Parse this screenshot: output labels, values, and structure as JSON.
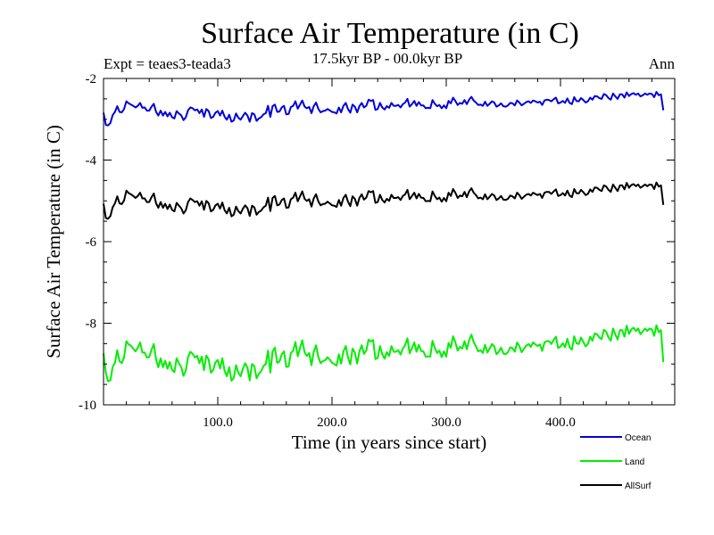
{
  "chart_data": {
    "type": "line",
    "title": "Surface Air Temperature (in C)",
    "subtitle": "17.5kyr BP - 00.0kyr BP",
    "left_label": "Expt = teaes3-teada3",
    "right_label": "Ann",
    "xlabel": "Time (in years since start)",
    "ylabel": "Surface Air Temperature (in C)",
    "xlim": [
      0,
      500
    ],
    "ylim": [
      -10,
      -2
    ],
    "x_ticks": [
      100,
      200,
      300,
      400
    ],
    "x_tick_labels": [
      "100.0",
      "200.0",
      "300.0",
      "400.0"
    ],
    "y_ticks": [
      -10,
      -8,
      -6,
      -4,
      -2
    ],
    "y_tick_labels": [
      "-10",
      "-8",
      "-6",
      "-4",
      "-2"
    ],
    "x_step": 2,
    "series": [
      {
        "name": "Ocean",
        "color": "#0000dd",
        "values": [
          -2.84,
          -3.14,
          -3.15,
          -3.09,
          -2.9,
          -2.82,
          -2.68,
          -2.82,
          -2.83,
          -2.75,
          -2.56,
          -2.61,
          -2.64,
          -2.67,
          -2.71,
          -2.67,
          -2.6,
          -2.72,
          -2.71,
          -2.79,
          -2.79,
          -2.69,
          -2.62,
          -2.82,
          -2.91,
          -2.79,
          -2.91,
          -2.82,
          -2.93,
          -2.84,
          -2.95,
          -2.98,
          -2.8,
          -2.86,
          -2.9,
          -3.02,
          -2.95,
          -2.78,
          -2.71,
          -2.73,
          -2.78,
          -2.76,
          -2.85,
          -2.76,
          -2.94,
          -2.75,
          -2.8,
          -2.97,
          -2.94,
          -2.84,
          -2.8,
          -2.91,
          -2.79,
          -2.94,
          -3.01,
          -2.89,
          -3.06,
          -3.03,
          -2.86,
          -2.96,
          -3.01,
          -2.92,
          -2.84,
          -2.91,
          -3.06,
          -2.85,
          -2.88,
          -3.04,
          -2.98,
          -2.95,
          -2.88,
          -2.85,
          -2.67,
          -2.94,
          -2.68,
          -2.64,
          -2.82,
          -2.81,
          -2.71,
          -2.67,
          -2.88,
          -2.87,
          -2.7,
          -2.67,
          -2.56,
          -2.74,
          -2.64,
          -2.54,
          -2.69,
          -2.73,
          -2.7,
          -2.85,
          -2.68,
          -2.59,
          -2.74,
          -2.83,
          -2.8,
          -2.79,
          -2.75,
          -2.78,
          -2.82,
          -2.83,
          -2.86,
          -2.71,
          -2.83,
          -2.67,
          -2.6,
          -2.75,
          -2.84,
          -2.64,
          -2.69,
          -2.83,
          -2.68,
          -2.6,
          -2.71,
          -2.67,
          -2.52,
          -2.55,
          -2.53,
          -2.77,
          -2.75,
          -2.6,
          -2.71,
          -2.76,
          -2.68,
          -2.72,
          -2.6,
          -2.67,
          -2.67,
          -2.65,
          -2.71,
          -2.63,
          -2.59,
          -2.5,
          -2.69,
          -2.63,
          -2.55,
          -2.67,
          -2.58,
          -2.66,
          -2.66,
          -2.73,
          -2.72,
          -2.73,
          -2.53,
          -2.62,
          -2.68,
          -2.65,
          -2.73,
          -2.66,
          -2.73,
          -2.55,
          -2.61,
          -2.47,
          -2.55,
          -2.65,
          -2.6,
          -2.62,
          -2.53,
          -2.63,
          -2.52,
          -2.45,
          -2.54,
          -2.59,
          -2.65,
          -2.64,
          -2.67,
          -2.57,
          -2.67,
          -2.62,
          -2.56,
          -2.59,
          -2.69,
          -2.66,
          -2.61,
          -2.68,
          -2.69,
          -2.66,
          -2.6,
          -2.61,
          -2.66,
          -2.54,
          -2.59,
          -2.66,
          -2.62,
          -2.58,
          -2.56,
          -2.6,
          -2.54,
          -2.56,
          -2.59,
          -2.57,
          -2.65,
          -2.54,
          -2.52,
          -2.53,
          -2.56,
          -2.51,
          -2.47,
          -2.61,
          -2.59,
          -2.55,
          -2.6,
          -2.49,
          -2.6,
          -2.63,
          -2.46,
          -2.55,
          -2.56,
          -2.48,
          -2.53,
          -2.59,
          -2.56,
          -2.47,
          -2.52,
          -2.43,
          -2.44,
          -2.48,
          -2.5,
          -2.38,
          -2.41,
          -2.48,
          -2.52,
          -2.37,
          -2.44,
          -2.5,
          -2.39,
          -2.39,
          -2.47,
          -2.34,
          -2.43,
          -2.38,
          -2.36,
          -2.4,
          -2.37,
          -2.44,
          -2.41,
          -2.37,
          -2.4,
          -2.37,
          -2.38,
          -2.46,
          -2.33,
          -2.41,
          -2.39,
          -2.78
        ]
      },
      {
        "name": "Land",
        "color": "#00ee00",
        "values": [
          -8.74,
          -9.21,
          -9.42,
          -9.4,
          -9.07,
          -8.97,
          -8.66,
          -8.93,
          -8.98,
          -8.84,
          -8.44,
          -8.52,
          -8.55,
          -8.62,
          -8.69,
          -8.6,
          -8.47,
          -8.72,
          -8.72,
          -8.84,
          -8.83,
          -8.65,
          -8.51,
          -8.89,
          -9.08,
          -8.86,
          -9.08,
          -8.92,
          -9.12,
          -8.95,
          -9.14,
          -9.2,
          -8.86,
          -8.98,
          -9.07,
          -9.29,
          -9.16,
          -8.83,
          -8.7,
          -8.75,
          -8.84,
          -8.8,
          -8.98,
          -8.82,
          -9.15,
          -8.79,
          -8.89,
          -9.21,
          -9.15,
          -8.96,
          -8.9,
          -9.11,
          -8.86,
          -9.17,
          -9.3,
          -9.08,
          -9.41,
          -9.34,
          -9.03,
          -9.21,
          -9.3,
          -9.11,
          -8.98,
          -9.09,
          -9.4,
          -9.0,
          -9.05,
          -9.35,
          -9.24,
          -9.18,
          -9.05,
          -9.0,
          -8.67,
          -9.21,
          -8.69,
          -8.6,
          -8.97,
          -8.94,
          -8.76,
          -8.69,
          -9.07,
          -9.06,
          -8.73,
          -8.67,
          -8.46,
          -8.81,
          -8.61,
          -8.42,
          -8.71,
          -8.8,
          -8.73,
          -9.03,
          -8.7,
          -8.54,
          -8.82,
          -8.98,
          -8.93,
          -8.91,
          -8.83,
          -8.89,
          -8.97,
          -9.0,
          -9.04,
          -8.76,
          -8.99,
          -8.69,
          -8.56,
          -8.84,
          -9.01,
          -8.62,
          -8.72,
          -8.99,
          -8.69,
          -8.54,
          -8.75,
          -8.67,
          -8.4,
          -8.45,
          -8.41,
          -8.88,
          -8.85,
          -8.56,
          -8.76,
          -8.87,
          -8.71,
          -8.8,
          -8.56,
          -8.7,
          -8.7,
          -8.66,
          -8.77,
          -8.62,
          -8.54,
          -8.37,
          -8.74,
          -8.61,
          -8.47,
          -8.7,
          -8.53,
          -8.68,
          -8.69,
          -8.82,
          -8.81,
          -8.82,
          -8.43,
          -8.61,
          -8.73,
          -8.67,
          -8.83,
          -8.69,
          -8.82,
          -8.48,
          -8.6,
          -8.32,
          -8.47,
          -8.67,
          -8.58,
          -8.62,
          -8.44,
          -8.64,
          -8.42,
          -8.28,
          -8.46,
          -8.57,
          -8.69,
          -8.66,
          -8.73,
          -8.53,
          -8.72,
          -8.62,
          -8.51,
          -8.57,
          -8.76,
          -8.7,
          -8.6,
          -8.74,
          -8.76,
          -8.71,
          -8.59,
          -8.61,
          -8.7,
          -8.47,
          -8.56,
          -8.71,
          -8.63,
          -8.55,
          -8.51,
          -8.58,
          -8.47,
          -8.52,
          -8.56,
          -8.52,
          -8.68,
          -8.47,
          -8.44,
          -8.44,
          -8.51,
          -8.41,
          -8.33,
          -8.61,
          -8.57,
          -8.49,
          -8.59,
          -8.38,
          -8.59,
          -8.65,
          -8.32,
          -8.49,
          -8.51,
          -8.35,
          -8.46,
          -8.57,
          -8.51,
          -8.33,
          -8.43,
          -8.25,
          -8.27,
          -8.35,
          -8.39,
          -8.16,
          -8.21,
          -8.35,
          -8.43,
          -8.13,
          -8.27,
          -8.4,
          -8.17,
          -8.17,
          -8.33,
          -8.06,
          -8.26,
          -8.15,
          -8.11,
          -8.19,
          -8.13,
          -8.27,
          -8.2,
          -8.13,
          -8.19,
          -8.13,
          -8.15,
          -8.31,
          -8.05,
          -8.22,
          -8.17,
          -8.95
        ]
      },
      {
        "name": "AllSurf",
        "color": "#000000",
        "values": [
          -5.07,
          -5.42,
          -5.44,
          -5.37,
          -5.16,
          -5.06,
          -4.89,
          -5.06,
          -5.08,
          -4.99,
          -4.75,
          -4.81,
          -4.84,
          -4.88,
          -4.93,
          -4.88,
          -4.8,
          -4.94,
          -4.94,
          -5.03,
          -5.03,
          -4.91,
          -4.82,
          -5.06,
          -5.17,
          -5.03,
          -5.17,
          -5.07,
          -5.2,
          -5.09,
          -5.22,
          -5.26,
          -5.05,
          -5.12,
          -5.18,
          -5.31,
          -5.23,
          -5.03,
          -4.94,
          -4.98,
          -5.03,
          -5.01,
          -5.12,
          -5.01,
          -5.22,
          -5.0,
          -5.06,
          -5.26,
          -5.22,
          -5.11,
          -5.07,
          -5.19,
          -5.04,
          -5.23,
          -5.31,
          -5.17,
          -5.38,
          -5.34,
          -5.14,
          -5.25,
          -5.31,
          -5.19,
          -5.11,
          -5.18,
          -5.37,
          -5.12,
          -5.16,
          -5.34,
          -5.27,
          -5.24,
          -5.16,
          -5.12,
          -4.92,
          -5.25,
          -4.93,
          -4.88,
          -5.11,
          -5.09,
          -4.98,
          -4.94,
          -5.17,
          -5.16,
          -4.96,
          -4.92,
          -4.8,
          -5.01,
          -4.89,
          -4.77,
          -4.95,
          -5.0,
          -4.96,
          -5.14,
          -4.94,
          -4.84,
          -5.01,
          -5.11,
          -5.08,
          -5.07,
          -5.02,
          -5.06,
          -5.11,
          -5.12,
          -5.15,
          -4.98,
          -5.12,
          -4.93,
          -4.85,
          -5.02,
          -5.13,
          -4.89,
          -4.95,
          -5.12,
          -4.93,
          -4.84,
          -4.97,
          -4.92,
          -4.76,
          -4.79,
          -4.76,
          -5.05,
          -5.03,
          -4.85,
          -4.98,
          -5.04,
          -4.95,
          -5.0,
          -4.85,
          -4.93,
          -4.93,
          -4.91,
          -4.98,
          -4.88,
          -4.84,
          -4.73,
          -4.96,
          -4.88,
          -4.8,
          -4.94,
          -4.83,
          -4.92,
          -4.93,
          -5.01,
          -5.0,
          -5.01,
          -4.77,
          -4.88,
          -4.96,
          -4.92,
          -5.02,
          -4.93,
          -5.01,
          -4.8,
          -4.88,
          -4.71,
          -4.8,
          -4.93,
          -4.87,
          -4.89,
          -4.78,
          -4.91,
          -4.77,
          -4.69,
          -4.8,
          -4.86,
          -4.94,
          -4.92,
          -4.96,
          -4.84,
          -4.96,
          -4.9,
          -4.83,
          -4.87,
          -4.98,
          -4.94,
          -4.88,
          -4.97,
          -4.98,
          -4.95,
          -4.87,
          -4.89,
          -4.94,
          -4.8,
          -4.86,
          -4.95,
          -4.9,
          -4.85,
          -4.83,
          -4.87,
          -4.8,
          -4.83,
          -4.86,
          -4.83,
          -4.93,
          -4.8,
          -4.78,
          -4.78,
          -4.83,
          -4.77,
          -4.72,
          -4.88,
          -4.86,
          -4.81,
          -4.87,
          -4.75,
          -4.87,
          -4.91,
          -4.71,
          -4.81,
          -4.82,
          -4.73,
          -4.79,
          -4.86,
          -4.83,
          -4.72,
          -4.78,
          -4.67,
          -4.68,
          -4.73,
          -4.76,
          -4.62,
          -4.65,
          -4.73,
          -4.78,
          -4.6,
          -4.68,
          -4.76,
          -4.62,
          -4.62,
          -4.72,
          -4.56,
          -4.68,
          -4.61,
          -4.59,
          -4.64,
          -4.6,
          -4.68,
          -4.64,
          -4.6,
          -4.64,
          -4.6,
          -4.61,
          -4.71,
          -4.55,
          -4.65,
          -4.62,
          -5.1
        ]
      }
    ],
    "legend": [
      "Ocean",
      "Land",
      "AllSurf"
    ],
    "legend_position": "bottom-right"
  }
}
